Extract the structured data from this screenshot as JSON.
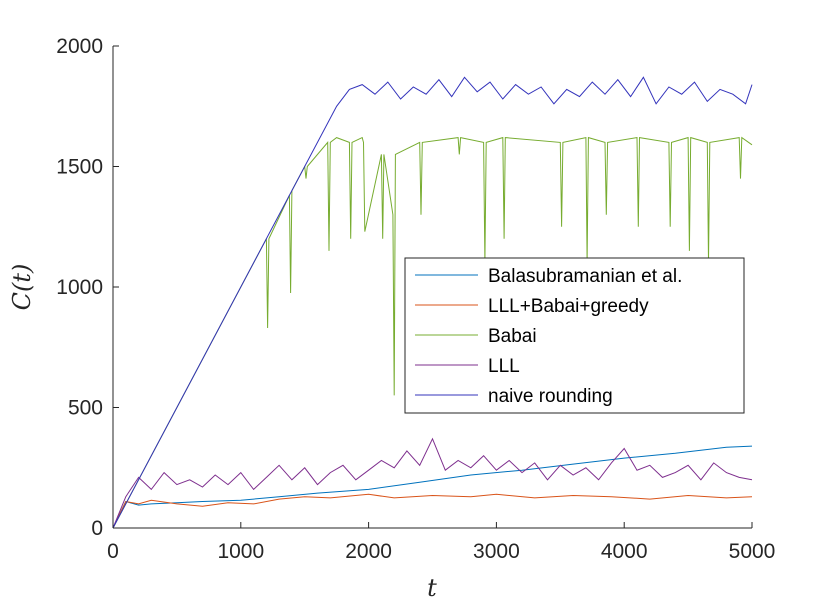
{
  "chart_data": {
    "type": "line",
    "xlabel": "t",
    "ylabel": "C(t)",
    "xlim": [
      0,
      5000
    ],
    "ylim": [
      0,
      2000
    ],
    "xticks": [
      "0",
      "1000",
      "2000",
      "3000",
      "4000",
      "5000"
    ],
    "yticks": [
      "0",
      "500",
      "1000",
      "1500",
      "2000"
    ],
    "grid": false,
    "legend_position": "center-right",
    "series": [
      {
        "name": "Balasubramanian et al.",
        "color": "#0072BD",
        "x": [
          0,
          100,
          200,
          300,
          500,
          700,
          1000,
          1300,
          1600,
          2000,
          2400,
          2800,
          3200,
          3600,
          4000,
          4400,
          4800,
          5000
        ],
        "y": [
          0,
          110,
          95,
          100,
          105,
          110,
          115,
          130,
          145,
          160,
          190,
          220,
          240,
          265,
          290,
          310,
          335,
          340
        ]
      },
      {
        "name": "LLL+Babai+greedy",
        "color": "#D95319",
        "x": [
          0,
          100,
          200,
          300,
          500,
          700,
          900,
          1100,
          1300,
          1500,
          1700,
          2000,
          2200,
          2500,
          2800,
          3000,
          3300,
          3600,
          3900,
          4200,
          4500,
          4800,
          5000
        ],
        "y": [
          0,
          110,
          100,
          115,
          100,
          90,
          105,
          100,
          120,
          130,
          125,
          140,
          125,
          135,
          130,
          140,
          125,
          135,
          130,
          120,
          135,
          125,
          130
        ]
      },
      {
        "name": "Babai",
        "color": "#77AC30",
        "x": [
          0,
          1200,
          1210,
          1220,
          1380,
          1390,
          1400,
          1500,
          1510,
          1520,
          1680,
          1690,
          1700,
          1750,
          1850,
          1860,
          1870,
          1950,
          1960,
          1970,
          2100,
          2110,
          2120,
          2190,
          2200,
          2210,
          2400,
          2410,
          2420,
          2700,
          2710,
          2720,
          2900,
          2910,
          2920,
          3050,
          3060,
          3070,
          3500,
          3510,
          3520,
          3700,
          3710,
          3720,
          3850,
          3860,
          3870,
          4100,
          4110,
          4120,
          4350,
          4360,
          4370,
          4500,
          4510,
          4520,
          4650,
          4660,
          4670,
          4900,
          4910,
          4920,
          5000
        ],
        "y": [
          0,
          1200,
          830,
          1200,
          1380,
          975,
          1400,
          1500,
          1450,
          1500,
          1600,
          1150,
          1600,
          1620,
          1600,
          1200,
          1600,
          1620,
          1600,
          1230,
          1550,
          1200,
          1550,
          1300,
          550,
          1550,
          1600,
          1300,
          1600,
          1620,
          1550,
          1620,
          1600,
          1100,
          1600,
          1620,
          1200,
          1620,
          1600,
          1250,
          1600,
          1620,
          1100,
          1620,
          1600,
          1300,
          1600,
          1620,
          1250,
          1620,
          1600,
          1250,
          1600,
          1620,
          1150,
          1620,
          1600,
          1100,
          1600,
          1620,
          1450,
          1620,
          1590
        ]
      },
      {
        "name": "LLL",
        "color": "#7E2F8E",
        "x": [
          0,
          100,
          200,
          300,
          400,
          500,
          600,
          700,
          800,
          900,
          1000,
          1100,
          1200,
          1300,
          1400,
          1500,
          1600,
          1700,
          1800,
          1900,
          2000,
          2100,
          2200,
          2300,
          2400,
          2500,
          2600,
          2700,
          2800,
          2900,
          3000,
          3100,
          3200,
          3300,
          3400,
          3500,
          3600,
          3700,
          3800,
          3900,
          4000,
          4100,
          4200,
          4300,
          4400,
          4500,
          4600,
          4700,
          4800,
          4900,
          5000
        ],
        "y": [
          0,
          130,
          210,
          160,
          230,
          180,
          200,
          170,
          220,
          180,
          230,
          160,
          210,
          260,
          200,
          250,
          180,
          230,
          260,
          200,
          240,
          280,
          250,
          320,
          260,
          370,
          240,
          280,
          250,
          300,
          240,
          280,
          230,
          270,
          200,
          260,
          220,
          250,
          200,
          270,
          330,
          240,
          260,
          210,
          230,
          260,
          200,
          270,
          230,
          210,
          200
        ]
      },
      {
        "name": "naive rounding",
        "color": "#3333BB",
        "x": [
          0,
          1750,
          1850,
          1950,
          2050,
          2150,
          2250,
          2350,
          2450,
          2550,
          2650,
          2750,
          2850,
          2950,
          3050,
          3150,
          3250,
          3350,
          3450,
          3550,
          3650,
          3750,
          3850,
          3950,
          4050,
          4150,
          4250,
          4350,
          4450,
          4550,
          4650,
          4750,
          4850,
          4950,
          5000
        ],
        "y": [
          0,
          1750,
          1820,
          1840,
          1800,
          1850,
          1780,
          1830,
          1800,
          1860,
          1790,
          1870,
          1810,
          1850,
          1780,
          1840,
          1800,
          1830,
          1760,
          1820,
          1790,
          1850,
          1800,
          1860,
          1790,
          1870,
          1760,
          1830,
          1800,
          1850,
          1770,
          1820,
          1800,
          1760,
          1840
        ]
      }
    ]
  }
}
